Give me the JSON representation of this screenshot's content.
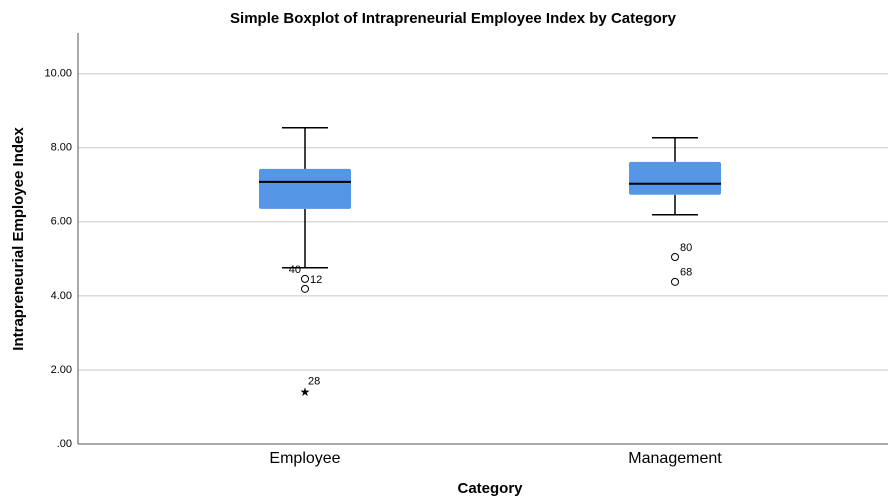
{
  "chart_data": {
    "type": "box",
    "title": "Simple Boxplot of Intrapreneurial Employee Index by Category",
    "x_label": "Category",
    "y_label": "Intrapreneurial Employee Index",
    "categories": [
      "Employee",
      "Management"
    ],
    "color": "#5596e6",
    "ylim": [
      0,
      11.1
    ],
    "yticks": [
      {
        "value": 0,
        "label": ".00"
      },
      {
        "value": 2,
        "label": "2.00"
      },
      {
        "value": 4,
        "label": "4.00"
      },
      {
        "value": 6,
        "label": "6.00"
      },
      {
        "value": 8,
        "label": "8.00"
      },
      {
        "value": 10,
        "label": "10.00"
      }
    ],
    "grid": true,
    "boxes": [
      {
        "whisker_low": 4.76,
        "q1": 6.35,
        "median": 7.08,
        "q3": 7.43,
        "whisker_high": 8.54,
        "outliers": [
          {
            "label": "40",
            "value": 4.46
          },
          {
            "label": "12",
            "value": 4.19
          }
        ],
        "extremes": [
          {
            "label": "28",
            "value": 1.41
          }
        ]
      },
      {
        "whisker_low": 6.19,
        "q1": 6.73,
        "median": 7.03,
        "q3": 7.62,
        "whisker_high": 8.27,
        "outliers": [
          {
            "label": "80",
            "value": 5.05
          },
          {
            "label": "68",
            "value": 4.38
          }
        ],
        "extremes": []
      }
    ]
  }
}
